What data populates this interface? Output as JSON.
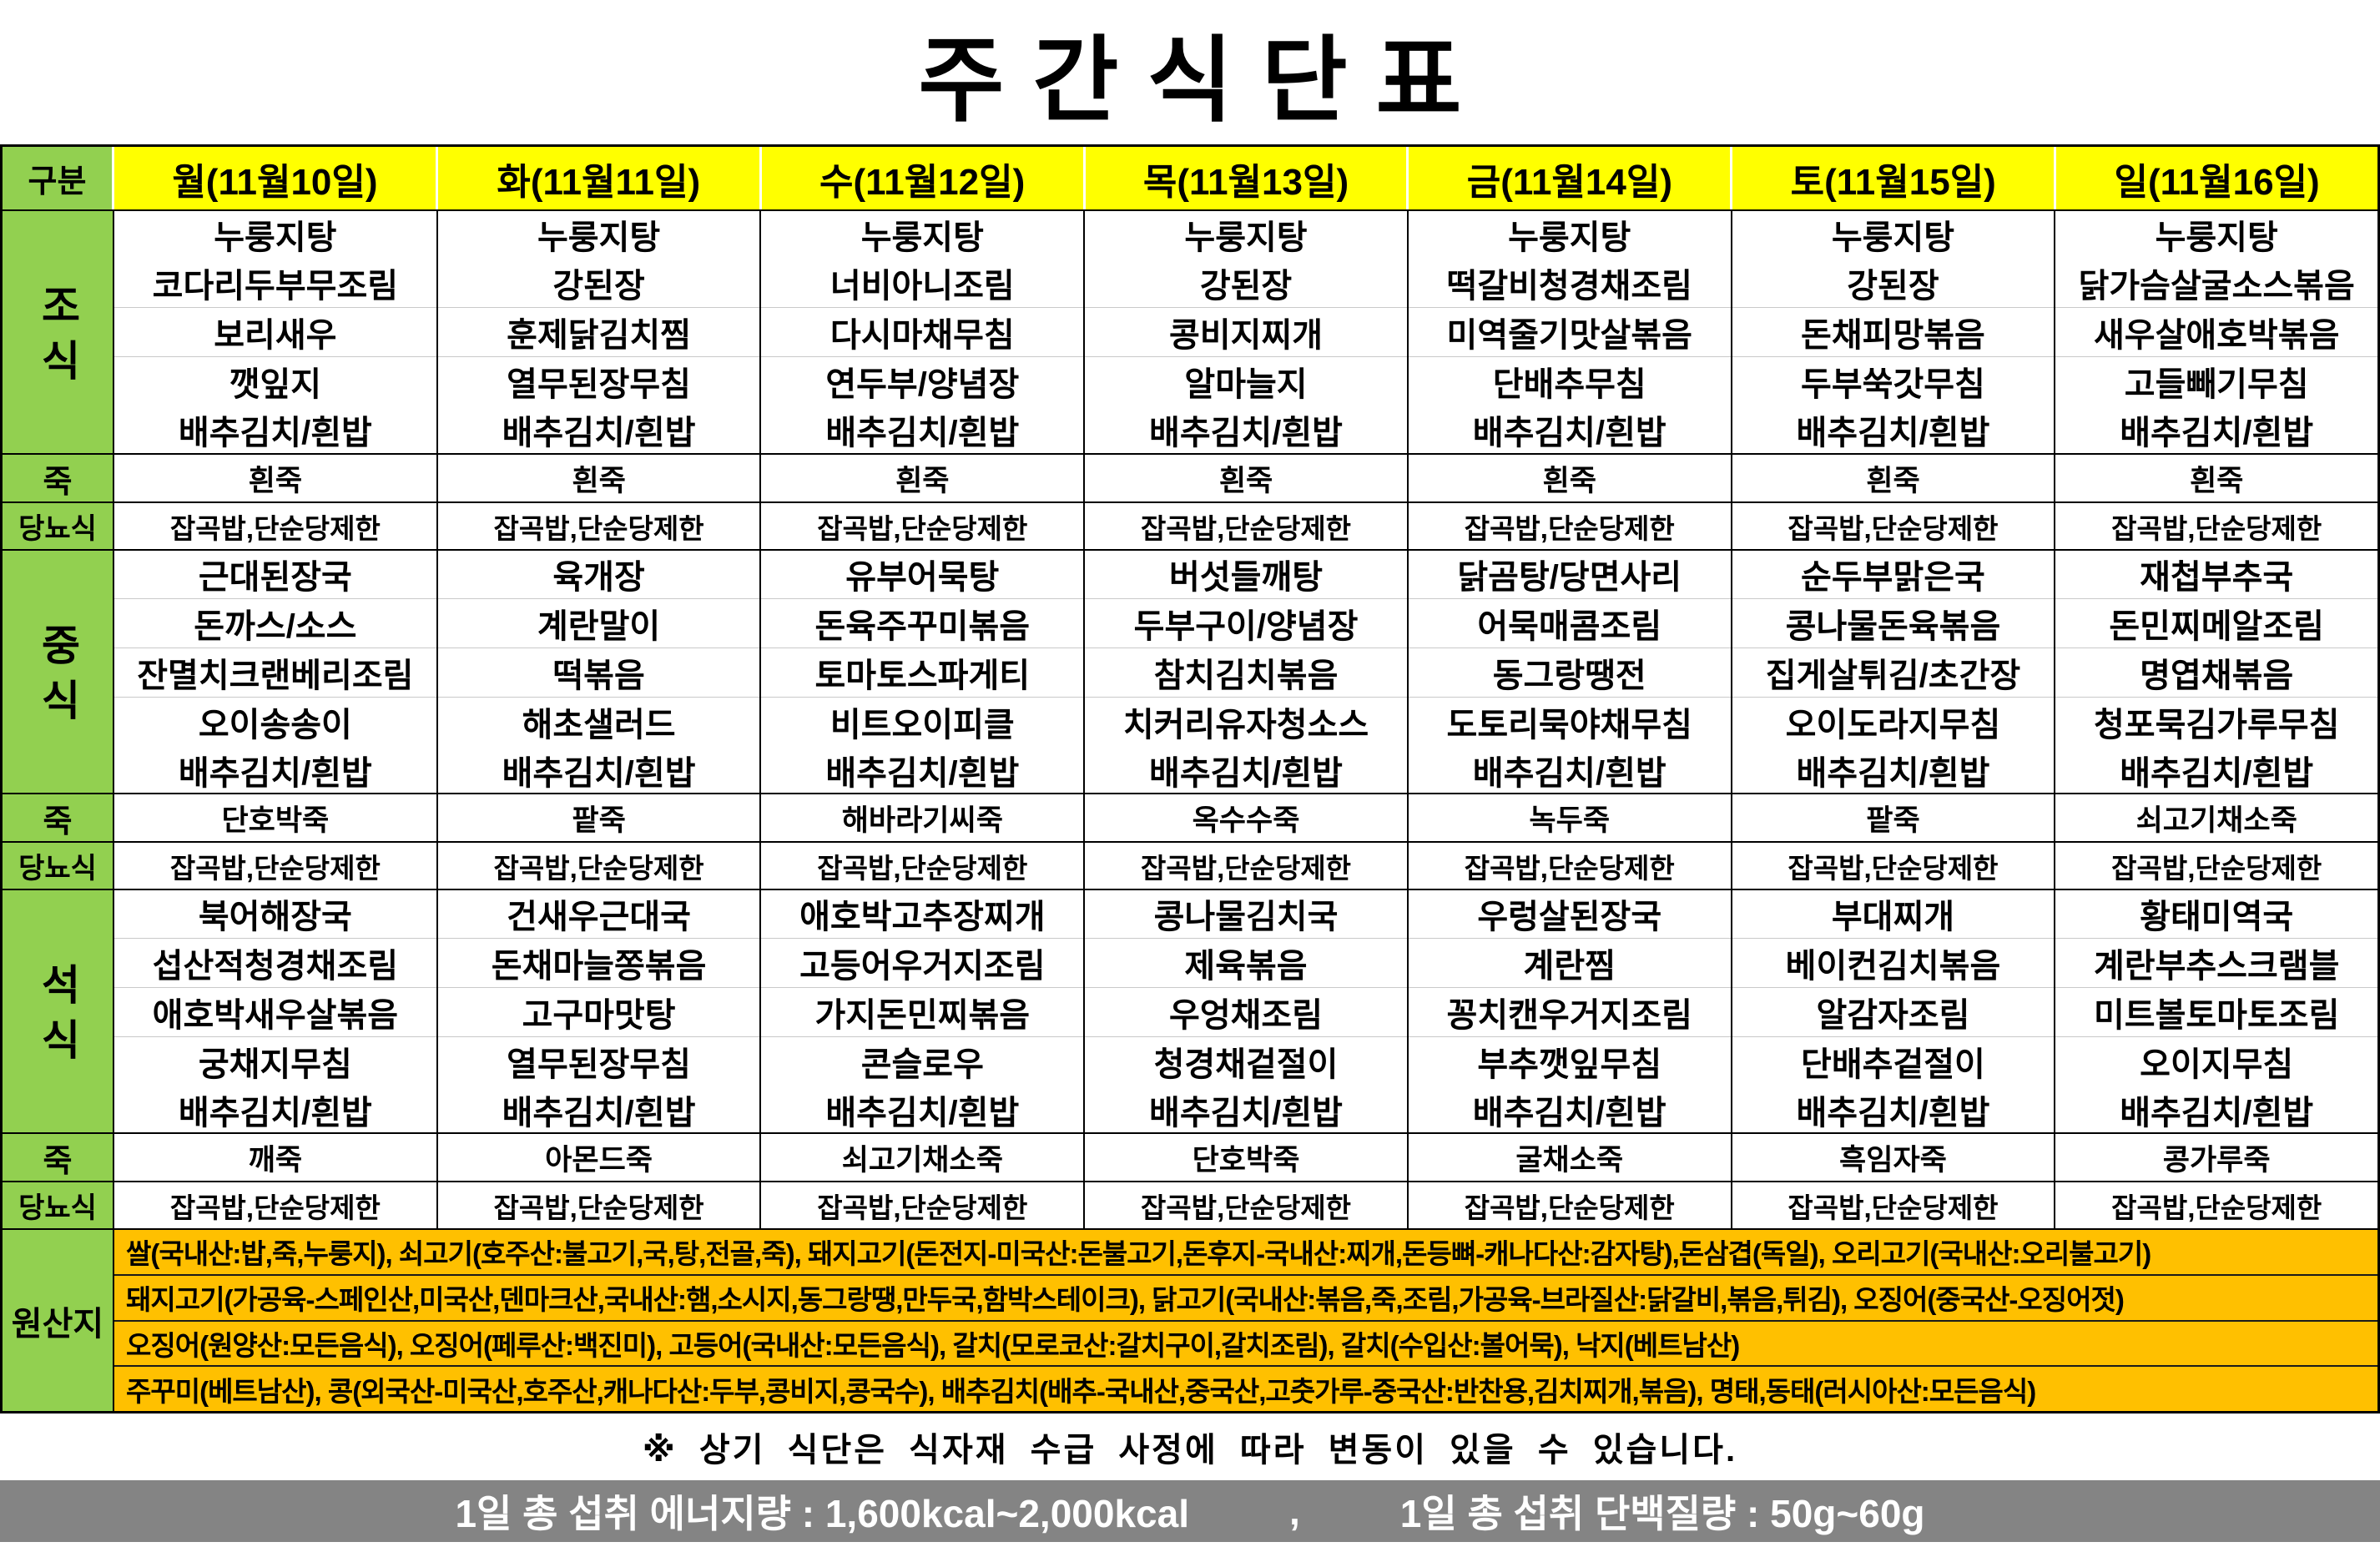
{
  "title": "주간식단표",
  "colors": {
    "header_yellow": "#FFFF00",
    "section_green": "#92D050",
    "origin_orange": "#FFC000",
    "footer_gray": "#848484",
    "grid_line_gray": "#C9C9C9",
    "border_black": "#000000"
  },
  "header": {
    "corner": "구분",
    "days": [
      "월(11월10일)",
      "화(11월11일)",
      "수(11월12일)",
      "목(11월13일)",
      "금(11월14일)",
      "토(11월15일)",
      "일(11월16일)"
    ]
  },
  "labels": {
    "porridge": "죽",
    "diabetic": "당뇨식"
  },
  "meals": [
    {
      "label": "조식",
      "menus": [
        [
          "누룽지탕",
          "코다리두부무조림",
          "보리새우",
          "깻잎지",
          "배추김치/흰밥"
        ],
        [
          "누룽지탕",
          "강된장",
          "훈제닭김치찜",
          "열무된장무침",
          "배추김치/흰밥"
        ],
        [
          "누룽지탕",
          "너비아니조림",
          "다시마채무침",
          "연두부/양념장",
          "배추김치/흰밥"
        ],
        [
          "누룽지탕",
          "강된장",
          "콩비지찌개",
          "알마늘지",
          "배추김치/흰밥"
        ],
        [
          "누룽지탕",
          "떡갈비청경채조림",
          "미역줄기맛살볶음",
          "단배추무침",
          "배추김치/흰밥"
        ],
        [
          "누룽지탕",
          "강된장",
          "돈채피망볶음",
          "두부쑥갓무침",
          "배추김치/흰밥"
        ],
        [
          "누룽지탕",
          "닭가슴살굴소스볶음",
          "새우살애호박볶음",
          "고들빼기무침",
          "배추김치/흰밥"
        ]
      ],
      "porridge": [
        "흰죽",
        "흰죽",
        "흰죽",
        "흰죽",
        "흰죽",
        "흰죽",
        "흰죽"
      ],
      "diabetic": [
        "잡곡밥,단순당제한",
        "잡곡밥,단순당제한",
        "잡곡밥,단순당제한",
        "잡곡밥,단순당제한",
        "잡곡밥,단순당제한",
        "잡곡밥,단순당제한",
        "잡곡밥,단순당제한"
      ]
    },
    {
      "label": "중식",
      "menus": [
        [
          "근대된장국",
          "돈까스/소스",
          "잔멸치크랜베리조림",
          "오이송송이",
          "배추김치/흰밥"
        ],
        [
          "육개장",
          "계란말이",
          "떡볶음",
          "해초샐러드",
          "배추김치/흰밥"
        ],
        [
          "유부어묵탕",
          "돈육주꾸미볶음",
          "토마토스파게티",
          "비트오이피클",
          "배추김치/흰밥"
        ],
        [
          "버섯들깨탕",
          "두부구이/양념장",
          "참치김치볶음",
          "치커리유자청소스",
          "배추김치/흰밥"
        ],
        [
          "닭곰탕/당면사리",
          "어묵매콤조림",
          "동그랑땡전",
          "도토리묵야채무침",
          "배추김치/흰밥"
        ],
        [
          "순두부맑은국",
          "콩나물돈육볶음",
          "집게살튀김/초간장",
          "오이도라지무침",
          "배추김치/흰밥"
        ],
        [
          "재첩부추국",
          "돈민찌메알조림",
          "명엽채볶음",
          "청포묵김가루무침",
          "배추김치/흰밥"
        ]
      ],
      "porridge": [
        "단호박죽",
        "팥죽",
        "해바라기씨죽",
        "옥수수죽",
        "녹두죽",
        "팥죽",
        "쇠고기채소죽"
      ],
      "diabetic": [
        "잡곡밥,단순당제한",
        "잡곡밥,단순당제한",
        "잡곡밥,단순당제한",
        "잡곡밥,단순당제한",
        "잡곡밥,단순당제한",
        "잡곡밥,단순당제한",
        "잡곡밥,단순당제한"
      ]
    },
    {
      "label": "석식",
      "menus": [
        [
          "북어해장국",
          "섭산적청경채조림",
          "애호박새우살볶음",
          "궁채지무침",
          "배추김치/흰밥"
        ],
        [
          "건새우근대국",
          "돈채마늘쫑볶음",
          "고구마맛탕",
          "열무된장무침",
          "배추김치/흰밥"
        ],
        [
          "애호박고추장찌개",
          "고등어우거지조림",
          "가지돈민찌볶음",
          "콘슬로우",
          "배추김치/흰밥"
        ],
        [
          "콩나물김치국",
          "제육볶음",
          "우엉채조림",
          "청경채겉절이",
          "배추김치/흰밥"
        ],
        [
          "우렁살된장국",
          "계란찜",
          "꽁치캔우거지조림",
          "부추깻잎무침",
          "배추김치/흰밥"
        ],
        [
          "부대찌개",
          "베이컨김치볶음",
          "알감자조림",
          "단배추겉절이",
          "배추김치/흰밥"
        ],
        [
          "황태미역국",
          "계란부추스크램블",
          "미트볼토마토조림",
          "오이지무침",
          "배추김치/흰밥"
        ]
      ],
      "porridge": [
        "깨죽",
        "아몬드죽",
        "쇠고기채소죽",
        "단호박죽",
        "굴채소죽",
        "흑임자죽",
        "콩가루죽"
      ],
      "diabetic": [
        "잡곡밥,단순당제한",
        "잡곡밥,단순당제한",
        "잡곡밥,단순당제한",
        "잡곡밥,단순당제한",
        "잡곡밥,단순당제한",
        "잡곡밥,단순당제한",
        "잡곡밥,단순당제한"
      ]
    }
  ],
  "origin": {
    "label": "원산지",
    "lines": [
      "쌀(국내산:밥,죽,누룽지), 쇠고기(호주산:불고기,국,탕,전골,죽), 돼지고기(돈전지-미국산:돈불고기,돈후지-국내산:찌개,돈등뼈-캐나다산:감자탕),돈삼겹(독일), 오리고기(국내산:오리불고기)",
      "돼지고기(가공육-스페인산,미국산,덴마크산,국내산:햄,소시지,동그랑땡,만두국,함박스테이크), 닭고기(국내산:볶음,죽,조림,가공육-브라질산:닭갈비,볶음,튀김), 오징어(중국산-오징어젓)",
      "오징어(원양산:모든음식), 오징어(페루산:백진미), 고등어(국내산:모든음식), 갈치(모로코산:갈치구이,갈치조림), 갈치(수입산:볼어묵), 낙지(베트남산)",
      "주꾸미(베트남산), 콩(외국산-미국산,호주산,캐나다산:두부,콩비지,콩국수), 배추김치(배추-국내산,중국산,고춧가루-중국산:반찬용,김치찌개,볶음), 명태,동태(러시아산:모든음식)"
    ]
  },
  "note": "※ 상기 식단은 식자재 수급 사정에 따라 변동이 있을 수 있습니다.",
  "footer": {
    "energy": "1일 총 섭취 에너지량  : 1,600kcal~2,000kcal",
    "separator": ",",
    "protein": "1일 총 섭취 단백질량 : 50g~60g"
  }
}
